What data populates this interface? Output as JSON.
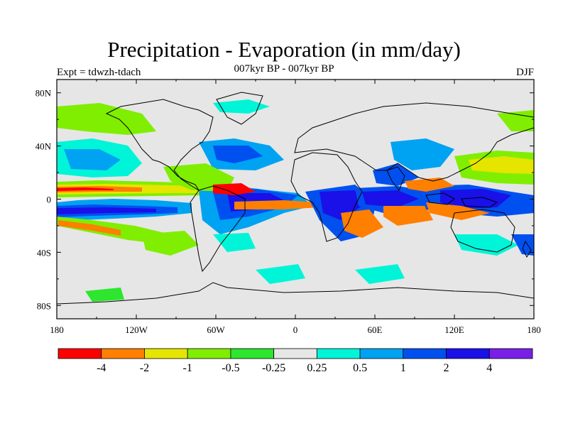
{
  "title": "Precipitation - Evaporation (in mm/day)",
  "subtitle": "007kyr BP - 007kyr BP",
  "experiment": "Expt = tdwzh-tdach",
  "season": "DJF",
  "map": {
    "lat_ticks": [
      "80N",
      "40N",
      "0",
      "40S",
      "80S"
    ],
    "lon_ticks": [
      "180",
      "120W",
      "60W",
      "0",
      "60E",
      "120E",
      "180"
    ],
    "background_color": "#e6e6e6",
    "coastline_color": "#000000"
  },
  "colorbar": {
    "colors": [
      "#ff0000",
      "#ff7f00",
      "#e5e500",
      "#80ee00",
      "#2de62d",
      "#e6e6e6",
      "#00f5d8",
      "#00a2f2",
      "#0050f0",
      "#1a10e8",
      "#7a20e6"
    ],
    "labels": [
      "-4",
      "-2",
      "-1",
      "-0.5",
      "-0.25",
      "0.25",
      "0.5",
      "1",
      "2",
      "4"
    ]
  }
}
